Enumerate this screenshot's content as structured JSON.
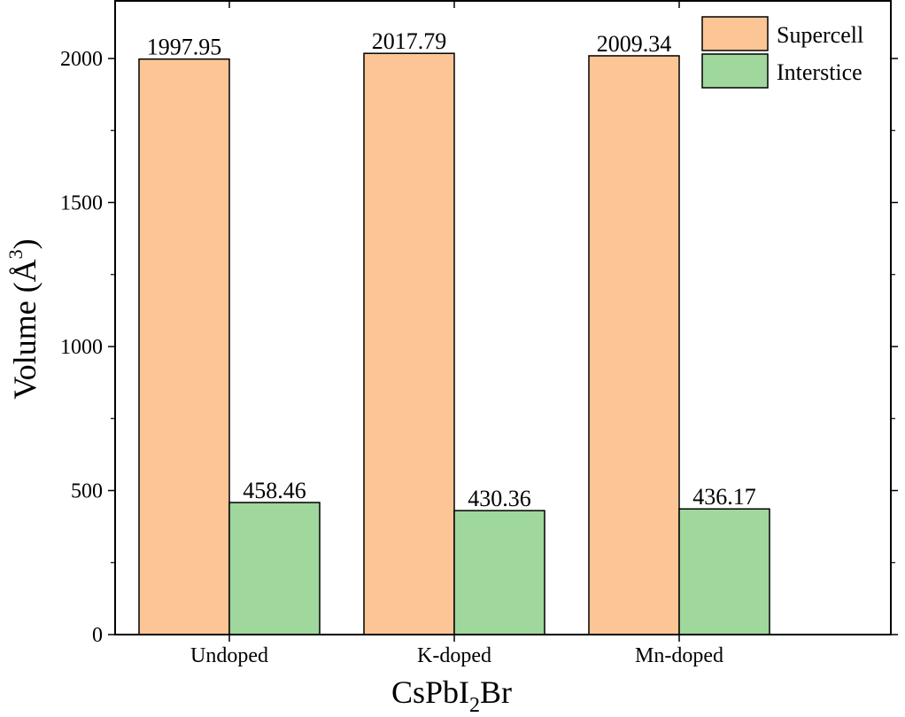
{
  "chart_data": {
    "type": "bar",
    "categories": [
      "Undoped",
      "K-doped",
      "Mn-doped"
    ],
    "series": [
      {
        "name": "Supercell",
        "values": [
          1997.95,
          2017.79,
          2009.34
        ],
        "labels": [
          "1997.95",
          "2017.79",
          "2009.34"
        ],
        "color": "#fcc596"
      },
      {
        "name": "Interstice",
        "values": [
          458.46,
          430.36,
          436.17
        ],
        "labels": [
          "458.46",
          "430.36",
          "436.17"
        ],
        "color": "#9fd79d"
      }
    ],
    "ylim": [
      0,
      2000
    ],
    "ymax": 2200,
    "yticks": [
      0,
      500,
      1000,
      1500,
      2000
    ],
    "ylabel": {
      "main": "Volume (Å",
      "sup": "3",
      "close": ")"
    },
    "xlabel": {
      "pre": "CsPbI",
      "sub": "2",
      "post": "Br"
    },
    "legend": "top-right",
    "grid": false
  }
}
